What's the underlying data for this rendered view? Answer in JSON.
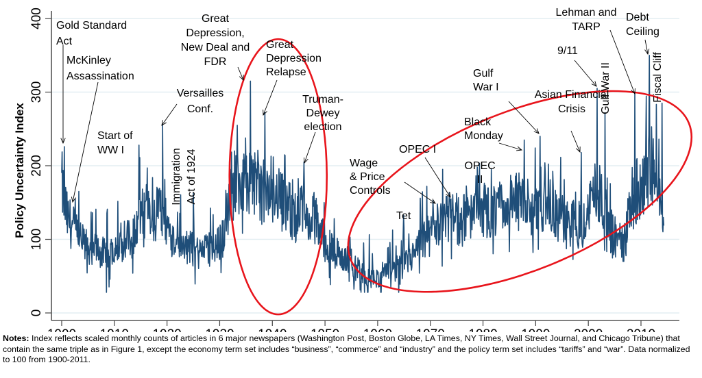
{
  "chart_data": {
    "type": "line",
    "title": "",
    "xlabel": "",
    "ylabel": "Policy Uncertainty Index",
    "xlim": [
      1898,
      2016.5
    ],
    "ylim": [
      -8,
      410
    ],
    "xticks": [
      1900,
      1910,
      1920,
      1930,
      1940,
      1950,
      1960,
      1970,
      1980,
      1990,
      2000,
      2010
    ],
    "yticks": [
      0,
      100,
      200,
      300,
      400
    ],
    "grid": true,
    "line_color": "#1f4e79",
    "highlight_color": "#e8141b",
    "series": [
      {
        "name": "Policy Uncertainty Index (monthly)",
        "annual_levels": {
          "x": [
            1900,
            1901,
            1902,
            1903,
            1904,
            1905,
            1906,
            1907,
            1908,
            1909,
            1910,
            1911,
            1912,
            1913,
            1914,
            1915,
            1916,
            1917,
            1918,
            1919,
            1920,
            1921,
            1922,
            1923,
            1924,
            1925,
            1926,
            1927,
            1928,
            1929,
            1930,
            1931,
            1932,
            1933,
            1934,
            1935,
            1936,
            1937,
            1938,
            1939,
            1940,
            1941,
            1942,
            1943,
            1944,
            1945,
            1946,
            1947,
            1948,
            1949,
            1950,
            1951,
            1952,
            1953,
            1954,
            1955,
            1956,
            1957,
            1958,
            1959,
            1960,
            1961,
            1962,
            1963,
            1964,
            1965,
            1966,
            1967,
            1968,
            1969,
            1970,
            1971,
            1972,
            1973,
            1974,
            1975,
            1976,
            1977,
            1978,
            1979,
            1980,
            1981,
            1982,
            1983,
            1984,
            1985,
            1986,
            1987,
            1988,
            1989,
            1990,
            1991,
            1992,
            1993,
            1994,
            1995,
            1996,
            1997,
            1998,
            1999,
            2000,
            2001,
            2002,
            2003,
            2004,
            2005,
            2006,
            2007,
            2008,
            2009,
            2010,
            2011,
            2012,
            2013,
            2014
          ],
          "y": [
            175,
            130,
            118,
            105,
            95,
            90,
            88,
            85,
            80,
            78,
            92,
            100,
            105,
            98,
            110,
            135,
            140,
            120,
            130,
            145,
            120,
            105,
            95,
            90,
            92,
            85,
            82,
            85,
            88,
            85,
            95,
            118,
            150,
            185,
            180,
            170,
            175,
            185,
            165,
            160,
            170,
            165,
            150,
            145,
            130,
            135,
            140,
            120,
            130,
            115,
            95,
            88,
            82,
            78,
            72,
            68,
            60,
            55,
            48,
            46,
            48,
            52,
            55,
            58,
            62,
            66,
            72,
            80,
            90,
            100,
            105,
            112,
            118,
            125,
            130,
            128,
            125,
            130,
            135,
            140,
            142,
            138,
            135,
            140,
            145,
            148,
            150,
            145,
            140,
            135,
            140,
            155,
            148,
            140,
            130,
            128,
            125,
            122,
            120,
            128,
            135,
            170,
            160,
            150,
            115,
            105,
            98,
            96,
            150,
            165,
            160,
            195,
            205,
            180,
            140
          ]
        },
        "spikes": {
          "x": [
            1900.5,
            1902.6,
            1914.7,
            1919.2,
            1925.0,
            1933.3,
            1935.8,
            1938.6,
            1946.0,
            1968.2,
            1971.3,
            1973.9,
            1979.6,
            1987.8,
            1990.8,
            1998.7,
            2001.7,
            2003.2,
            2008.8,
            2011.6,
            2014.0
          ],
          "y": [
            226,
            155,
            228,
            255,
            163,
            255,
            315,
            272,
            205,
            130,
            148,
            155,
            150,
            235,
            240,
            218,
            305,
            272,
            298,
            350,
            285
          ]
        }
      }
    ],
    "ellipses": [
      {
        "name": "great-depression-era",
        "center_year": 1941.1,
        "center_value": 185
      },
      {
        "name": "modern-rising-uncertainty",
        "center_year": 1987,
        "center_value": 165
      }
    ],
    "annotations": [
      {
        "id": "gold-standard-act",
        "lines": [
          "Gold Standard",
          "Act"
        ],
        "year": 1900.5,
        "value": 226
      },
      {
        "id": "mckinley-assassination",
        "lines": [
          "McKinley",
          "Assassination"
        ],
        "year": 1902.6,
        "value": 155
      },
      {
        "id": "start-of-wwi",
        "lines": [
          "Start of",
          "WW I"
        ],
        "year": null,
        "value": null
      },
      {
        "id": "versailles-conf",
        "lines": [
          "Versailles",
          "Conf."
        ],
        "year": 1919.2,
        "value": 255
      },
      {
        "id": "immigration-act",
        "lines": [
          "Immigration",
          "Act of 1924"
        ],
        "vertical": true
      },
      {
        "id": "great-depression-fdr",
        "lines": [
          "Great",
          "Depression,",
          "New Deal and",
          "FDR"
        ],
        "year": 1935.8,
        "value": 315
      },
      {
        "id": "great-depression-relapse",
        "lines": [
          "Great",
          "Depression",
          "Relapse"
        ],
        "year": 1938.6,
        "value": 272
      },
      {
        "id": "truman-dewey",
        "lines": [
          "Truman-",
          "Dewey",
          "election"
        ],
        "year": 1946.0,
        "value": 205
      },
      {
        "id": "wage-price-controls",
        "lines": [
          "Wage",
          "& Price",
          "Controls"
        ],
        "year": 1971.3,
        "value": 148
      },
      {
        "id": "tet",
        "lines": [
          "Tet"
        ]
      },
      {
        "id": "opec-i",
        "lines": [
          "OPEC I"
        ],
        "year": 1973.9,
        "value": 155
      },
      {
        "id": "opec-ii",
        "lines": [
          "OPEC",
          "II"
        ]
      },
      {
        "id": "black-monday",
        "lines": [
          "Black",
          "Monday"
        ],
        "year": 1987.8,
        "value": 235
      },
      {
        "id": "gulf-war-i",
        "lines": [
          "Gulf",
          "War I"
        ],
        "year": 1990.8,
        "value": 240
      },
      {
        "id": "asian-financial-crisis",
        "lines": [
          "Asian Financial",
          "Crisis"
        ],
        "year": 1998.7,
        "value": 218
      },
      {
        "id": "nine-eleven",
        "lines": [
          "9/11"
        ],
        "year": 2001.7,
        "value": 305
      },
      {
        "id": "gulf-war-ii",
        "lines": [
          "Gulf War II"
        ],
        "vertical": true
      },
      {
        "id": "lehman-tarp",
        "lines": [
          "Lehman and",
          "TARP"
        ],
        "year": 2008.8,
        "value": 298
      },
      {
        "id": "debt-ceiling",
        "lines": [
          "Debt",
          "Ceiling"
        ],
        "year": 2011.6,
        "value": 350
      },
      {
        "id": "fiscal-cliff",
        "lines": [
          "Fiscal Cliff"
        ],
        "vertical": true
      }
    ]
  },
  "notes": {
    "label": "Notes:",
    "text": " Index reflects scaled monthly counts of articles in 6 major newspapers (Washington Post, Boston Globe, LA Times, NY Times, Wall Street Journal, and Chicago Tribune) that contain the same triple as in Figure 1, except the economy term set includes “business”, “commerce” and “industry” and the policy term set includes “tariffs” and “war”. Data normalized to 100 from 1900-2011."
  }
}
